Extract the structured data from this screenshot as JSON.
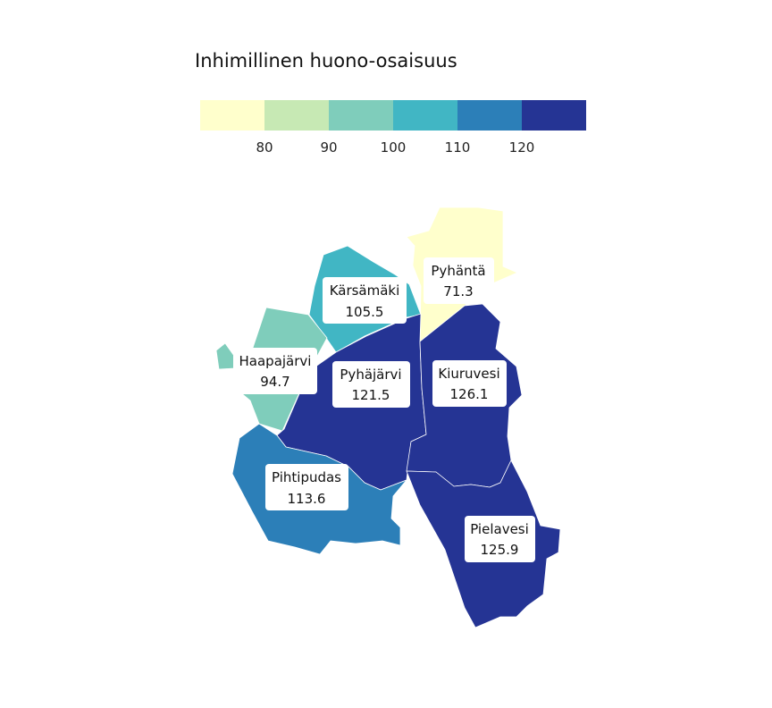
{
  "legend": {
    "title": "Inhimillinen huono-osaisuus",
    "bins": [
      {
        "color": "#ffffcc"
      },
      {
        "color": "#c7e9b4"
      },
      {
        "color": "#7fcdbb"
      },
      {
        "color": "#41b6c4"
      },
      {
        "color": "#2c7fb8"
      },
      {
        "color": "#253494"
      }
    ],
    "ticks": [
      "80",
      "90",
      "100",
      "110",
      "120"
    ]
  },
  "regions": [
    {
      "name": "Pyhäntä",
      "value": "71.3",
      "color": "#ffffcc"
    },
    {
      "name": "Kärsämäki",
      "value": "105.5",
      "color": "#41b6c4"
    },
    {
      "name": "Haapajärvi",
      "value": "94.7",
      "color": "#7fcdbb"
    },
    {
      "name": "Pyhäjärvi",
      "value": "121.5",
      "color": "#253494"
    },
    {
      "name": "Kiuruvesi",
      "value": "126.1",
      "color": "#253494"
    },
    {
      "name": "Pihtipudas",
      "value": "113.6",
      "color": "#2c7fb8"
    },
    {
      "name": "Pielavesi",
      "value": "125.9",
      "color": "#253494"
    }
  ]
}
